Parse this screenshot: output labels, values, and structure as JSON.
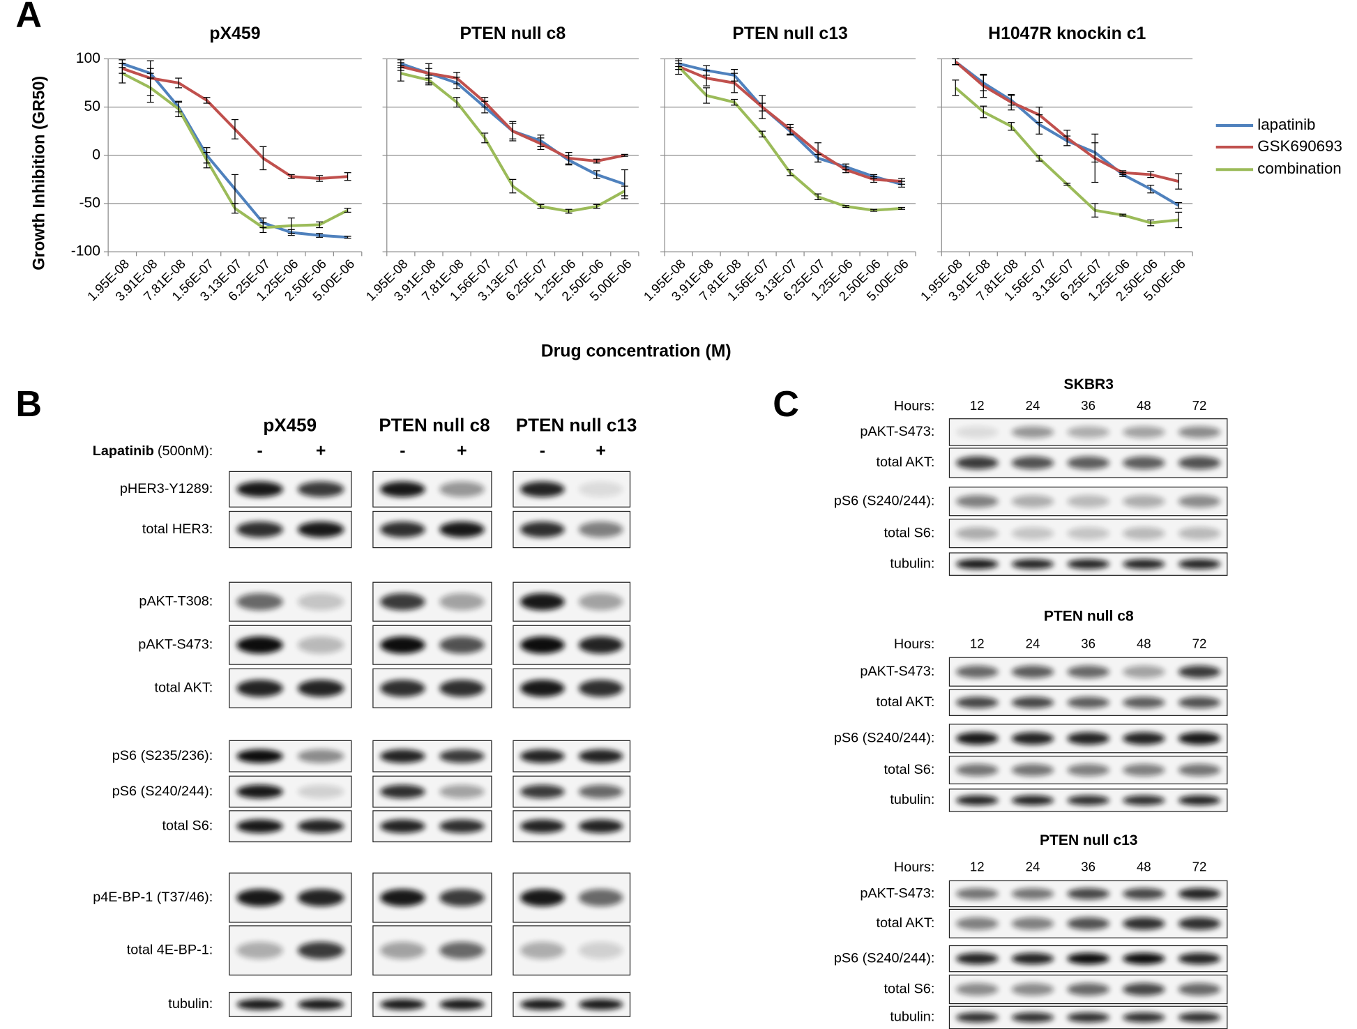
{
  "panel_labels": [
    "A",
    "B",
    "C"
  ],
  "panel_a": {
    "y_label": "Growth Inhibition (GR50)",
    "x_label": "Drug concentration (M)"
  },
  "chart_data": [
    {
      "type": "line",
      "title": "pX459",
      "categories": [
        "1.95E-08",
        "3.91E-08",
        "7.81E-08",
        "1.56E-07",
        "3.13E-07",
        "6.25E-07",
        "1.25E-06",
        "2.50E-06",
        "5.00E-06"
      ],
      "series": [
        {
          "name": "lapatinib",
          "color": "#4f81bd",
          "values": [
            95,
            85,
            50,
            0,
            -35,
            -70,
            -80,
            -83,
            -85
          ],
          "errors": [
            4,
            5,
            5,
            8,
            15,
            5,
            3,
            2,
            1
          ]
        },
        {
          "name": "GSK690693",
          "color": "#c0504d",
          "values": [
            90,
            80,
            75,
            57,
            27,
            -3,
            -22,
            -24,
            -22
          ],
          "errors": [
            5,
            18,
            5,
            3,
            10,
            12,
            2,
            3,
            4
          ]
        },
        {
          "name": "combination",
          "color": "#9bbb59",
          "values": [
            85,
            70,
            48,
            -5,
            -55,
            -75,
            -73,
            -72,
            -57
          ],
          "errors": [
            10,
            15,
            8,
            8,
            5,
            5,
            8,
            3,
            2
          ]
        }
      ],
      "ylim": [
        -100,
        100
      ],
      "yticks": [
        -100,
        -50,
        0,
        50,
        100
      ],
      "grid": true
    },
    {
      "type": "line",
      "title": "PTEN null c8",
      "categories": [
        "1.95E-08",
        "3.91E-08",
        "7.81E-08",
        "1.56E-07",
        "3.13E-07",
        "6.25E-07",
        "1.25E-06",
        "2.50E-06",
        "5.00E-06"
      ],
      "series": [
        {
          "name": "lapatinib",
          "color": "#4f81bd",
          "values": [
            95,
            85,
            75,
            50,
            25,
            15,
            -5,
            -20,
            -30
          ],
          "errors": [
            4,
            5,
            6,
            6,
            10,
            6,
            5,
            4,
            15
          ]
        },
        {
          "name": "GSK690693",
          "color": "#c0504d",
          "values": [
            92,
            85,
            80,
            55,
            25,
            12,
            -3,
            -6,
            0
          ],
          "errors": [
            4,
            10,
            6,
            5,
            8,
            6,
            6,
            2,
            1
          ]
        },
        {
          "name": "combination",
          "color": "#9bbb59",
          "values": [
            85,
            78,
            55,
            18,
            -32,
            -53,
            -58,
            -53,
            -37
          ],
          "errors": [
            8,
            5,
            5,
            5,
            7,
            2,
            2,
            2,
            5
          ]
        }
      ],
      "ylim": [
        -100,
        100
      ],
      "yticks": [
        -100,
        -50,
        0,
        50,
        100
      ],
      "grid": true
    },
    {
      "type": "line",
      "title": "PTEN null c13",
      "categories": [
        "1.95E-08",
        "3.91E-08",
        "7.81E-08",
        "1.56E-07",
        "3.13E-07",
        "6.25E-07",
        "1.25E-06",
        "2.50E-06",
        "5.00E-06"
      ],
      "series": [
        {
          "name": "lapatinib",
          "color": "#4f81bd",
          "values": [
            95,
            88,
            83,
            50,
            25,
            -3,
            -12,
            -22,
            -30
          ],
          "errors": [
            3,
            5,
            6,
            4,
            4,
            4,
            3,
            2,
            3
          ]
        },
        {
          "name": "GSK690693",
          "color": "#c0504d",
          "values": [
            92,
            80,
            75,
            50,
            27,
            3,
            -15,
            -25,
            -27
          ],
          "errors": [
            3,
            8,
            10,
            12,
            5,
            10,
            3,
            3,
            3
          ]
        },
        {
          "name": "combination",
          "color": "#9bbb59",
          "values": [
            92,
            62,
            55,
            22,
            -18,
            -43,
            -53,
            -57,
            -55
          ],
          "errors": [
            8,
            8,
            3,
            3,
            3,
            3,
            1,
            1,
            1
          ]
        }
      ],
      "ylim": [
        -100,
        100
      ],
      "yticks": [
        -100,
        -50,
        0,
        50,
        100
      ],
      "grid": true
    },
    {
      "type": "line",
      "title": "H1047R knockin c1",
      "categories": [
        "1.95E-08",
        "3.91E-08",
        "7.81E-08",
        "1.56E-07",
        "3.13E-07",
        "6.25E-07",
        "1.25E-06",
        "2.50E-06",
        "5.00E-06"
      ],
      "series": [
        {
          "name": "lapatinib",
          "color": "#4f81bd",
          "values": [
            97,
            75,
            57,
            32,
            15,
            3,
            -20,
            -35,
            -52
          ],
          "errors": [
            3,
            8,
            5,
            10,
            5,
            10,
            2,
            4,
            3
          ]
        },
        {
          "name": "GSK690693",
          "color": "#c0504d",
          "values": [
            97,
            72,
            55,
            42,
            18,
            -3,
            -18,
            -20,
            -27
          ],
          "errors": [
            3,
            12,
            8,
            8,
            8,
            25,
            2,
            3,
            8
          ]
        },
        {
          "name": "combination",
          "color": "#9bbb59",
          "values": [
            70,
            45,
            30,
            -3,
            -30,
            -57,
            -62,
            -70,
            -67
          ],
          "errors": [
            8,
            6,
            4,
            3,
            1,
            7,
            1,
            3,
            8
          ]
        }
      ],
      "ylim": [
        -100,
        100
      ],
      "yticks": [
        -100,
        -50,
        0,
        50,
        100
      ],
      "grid": true
    }
  ],
  "panel_b": {
    "groups": [
      "pX459",
      "PTEN null c8",
      "PTEN null c13"
    ],
    "treatment": {
      "name": "Lapatinib",
      "dose": "(500nM):"
    },
    "lanes": [
      "-",
      "+"
    ],
    "rows": [
      "pHER3-Y1289:",
      "total HER3:",
      "pAKT-T308:",
      "pAKT-S473:",
      "total AKT:",
      "pS6 (S235/236):",
      "pS6 (S240/244):",
      "total S6:",
      "p4E-BP-1 (T37/46):",
      "total 4E-BP-1:",
      "tubulin:"
    ]
  },
  "panel_c": {
    "blots": [
      {
        "title": "SKBR3",
        "hours_label": "Hours:",
        "hours": [
          12,
          24,
          36,
          48,
          72
        ],
        "rows": [
          "pAKT-S473:",
          "total AKT:",
          "pS6 (S240/244):",
          "total S6:",
          "tubulin:"
        ]
      },
      {
        "title": "PTEN null c8",
        "hours_label": "Hours:",
        "hours": [
          12,
          24,
          36,
          48,
          72
        ],
        "rows": [
          "pAKT-S473:",
          "total AKT:",
          "pS6 (S240/244):",
          "total S6:",
          "tubulin:"
        ]
      },
      {
        "title": "PTEN null c13",
        "hours_label": "Hours:",
        "hours": [
          12,
          24,
          36,
          48,
          72
        ],
        "rows": [
          "pAKT-S473:",
          "total AKT:",
          "pS6 (S240/244):",
          "total S6:",
          "tubulin:"
        ]
      }
    ]
  }
}
